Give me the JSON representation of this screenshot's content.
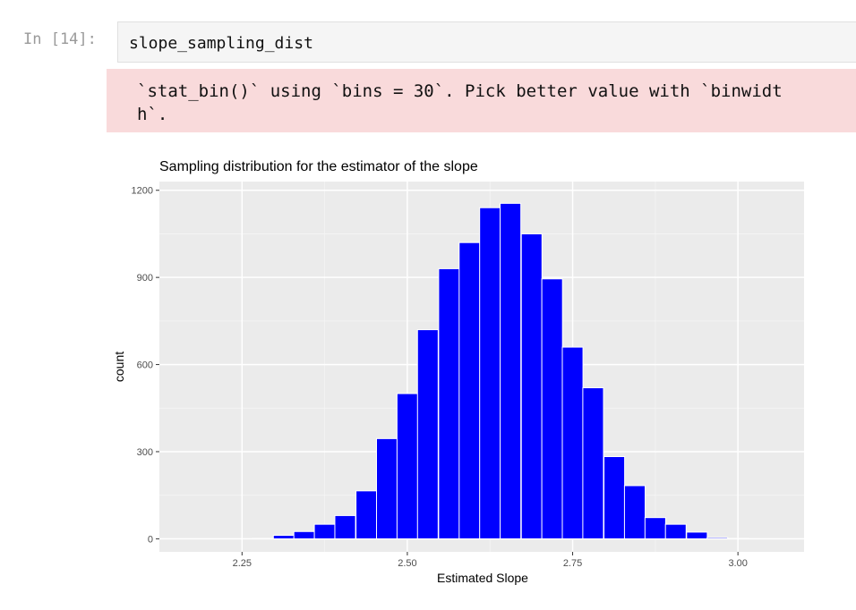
{
  "cell": {
    "prompt": "In [14]:",
    "code": "slope_sampling_dist"
  },
  "stderr": {
    "line1": "`stat_bin()` using `bins = 30`. Pick better value with `binwidt",
    "line2": "h`."
  },
  "chart_data": {
    "type": "bar",
    "title": "Sampling distribution for the estimator of the slope",
    "xlabel": "Estimated Slope",
    "ylabel": "count",
    "xlim": [
      2.125,
      3.1
    ],
    "ylim": [
      -45,
      1230
    ],
    "x_ticks": [
      2.25,
      2.5,
      2.75,
      3.0
    ],
    "x_tick_labels": [
      "2.25",
      "2.50",
      "2.75",
      "3.00"
    ],
    "y_ticks": [
      0,
      300,
      600,
      900,
      1200
    ],
    "y_tick_labels": [
      "0",
      "300",
      "600",
      "900",
      "1200"
    ],
    "bin_width": 0.03125,
    "bin_centers": [
      2.156,
      2.188,
      2.219,
      2.25,
      2.281,
      2.313,
      2.344,
      2.375,
      2.406,
      2.438,
      2.469,
      2.5,
      2.531,
      2.563,
      2.594,
      2.625,
      2.656,
      2.688,
      2.719,
      2.75,
      2.781,
      2.813,
      2.844,
      2.875,
      2.906,
      2.938,
      2.969,
      3.0,
      3.031,
      3.063
    ],
    "values": [
      0,
      0,
      0,
      0,
      1,
      12,
      25,
      50,
      80,
      165,
      345,
      500,
      720,
      930,
      1020,
      1140,
      1155,
      1050,
      895,
      660,
      520,
      283,
      183,
      73,
      50,
      23,
      4,
      1,
      0,
      0
    ],
    "bar_color": "#0000ff",
    "panel_color": "#ebebeb",
    "grid": true
  }
}
